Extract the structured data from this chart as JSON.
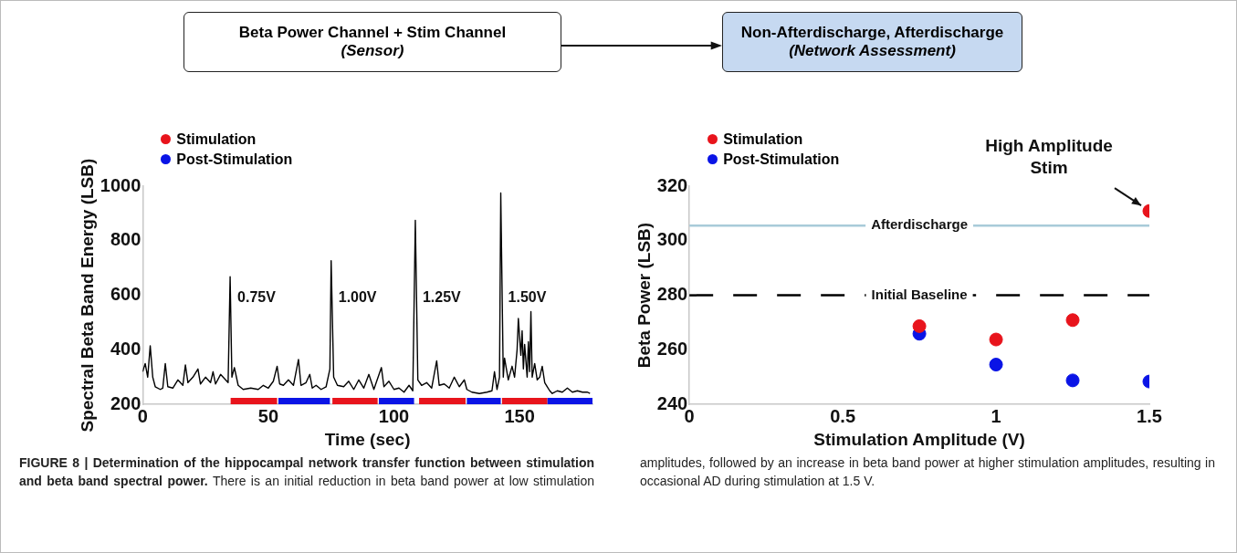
{
  "chart_data": [
    {
      "type": "other",
      "annotations": [
        "Beta Power Channel + Stim Channel",
        "(Sensor)",
        "Non-Afterdischarge, Afterdischarge",
        "(Network Assessment)"
      ]
    },
    {
      "type": "line",
      "xlabel": "Time (sec)",
      "ylabel": "Spectral Beta Band Energy (LSB)",
      "xlim": [
        0,
        179
      ],
      "xticks": [
        0,
        50,
        100,
        150
      ],
      "ylim": [
        200,
        1000
      ],
      "yticks": [
        200,
        400,
        600,
        800,
        1000
      ],
      "grid": false,
      "legend": "top left",
      "marker": "none",
      "annotations": [
        {
          "text": "0.75V",
          "x": 34.8,
          "y": 590
        },
        {
          "text": "1.00V",
          "x": 75,
          "y": 590
        },
        {
          "text": "1.25V",
          "x": 108.5,
          "y": 590
        },
        {
          "text": "1.50V",
          "x": 142.5,
          "y": 590
        }
      ],
      "series": [
        {
          "color": "#000000",
          "x": [
            0,
            1,
            2,
            3,
            4,
            5,
            7,
            8,
            9,
            10,
            12,
            14,
            16,
            17,
            18,
            20,
            22,
            23,
            25,
            27,
            28,
            29,
            31,
            33,
            34,
            34.8,
            35.5,
            36.5,
            38,
            40,
            43,
            46,
            48,
            50,
            52,
            53.5,
            54.5,
            56,
            58,
            60,
            62,
            63,
            65,
            66.5,
            67.5,
            69,
            71,
            73,
            74.5,
            75,
            76,
            77.5,
            80,
            82,
            84,
            86,
            88,
            90,
            92,
            95,
            96,
            98,
            100,
            102,
            104,
            106,
            107.5,
            108.5,
            109.5,
            111,
            113,
            115,
            117,
            118,
            120,
            122,
            124,
            126,
            128,
            129,
            131,
            134,
            137,
            139,
            140,
            141,
            142,
            142.5,
            143.5,
            144,
            145.5,
            147,
            148,
            149,
            149.5,
            150.5,
            151,
            151.5,
            152,
            153,
            153.5,
            154,
            154.5,
            155,
            156,
            157,
            158,
            159,
            160,
            161,
            162,
            163,
            165,
            167,
            169,
            171,
            173,
            175,
            177,
            178
          ],
          "values": [
            320,
            350,
            300,
            415,
            300,
            265,
            255,
            260,
            350,
            265,
            260,
            290,
            270,
            345,
            280,
            300,
            330,
            275,
            300,
            280,
            320,
            275,
            310,
            290,
            280,
            668,
            300,
            335,
            270,
            255,
            260,
            255,
            270,
            260,
            285,
            340,
            275,
            270,
            290,
            270,
            365,
            270,
            280,
            310,
            260,
            270,
            255,
            265,
            330,
            727,
            300,
            270,
            265,
            285,
            255,
            290,
            260,
            310,
            255,
            335,
            265,
            285,
            255,
            260,
            245,
            270,
            250,
            875,
            290,
            270,
            280,
            260,
            360,
            270,
            275,
            260,
            300,
            265,
            290,
            255,
            245,
            240,
            245,
            250,
            320,
            255,
            300,
            975,
            300,
            370,
            290,
            340,
            300,
            400,
            515,
            380,
            470,
            330,
            420,
            300,
            430,
            320,
            540,
            300,
            350,
            290,
            300,
            340,
            280,
            265,
            250,
            240,
            250,
            245,
            260,
            245,
            250,
            245,
            245,
            240
          ]
        },
        {
          "name": "Stimulation",
          "color": "#e8141c",
          "x": [
            35,
            53.5,
            54,
            75.5,
            93.5,
            94,
            110,
            128.5,
            129,
            143,
            161
          ],
          "values": [
            212,
            212,
            null,
            212,
            212,
            null,
            212,
            212,
            null,
            212,
            212
          ]
        },
        {
          "name": "Post-Stimulation",
          "color": "#0a14e6",
          "x": [
            54,
            74.5,
            75,
            94,
            108,
            109,
            129,
            142.5,
            143,
            161,
            179
          ],
          "values": [
            212,
            212,
            null,
            212,
            212,
            null,
            212,
            212,
            null,
            212,
            212
          ]
        }
      ]
    },
    {
      "type": "scatter",
      "xlabel": "Stimulation Amplitude (V)",
      "ylabel": "Beta Power (LSB)",
      "xlim": [
        0,
        1.5
      ],
      "xticks": [
        0,
        0.5,
        1,
        1.5
      ],
      "ylim": [
        240,
        320
      ],
      "yticks": [
        240,
        260,
        280,
        300,
        320
      ],
      "grid": false,
      "legend": "top left",
      "marker": "circle",
      "x": [
        0.75,
        1,
        1.25,
        1.5
      ],
      "annotations": [
        {
          "text": "High Amplitude Stim",
          "x": 1.5,
          "y": 310.9
        }
      ],
      "ref_lines": [
        {
          "axis": "y",
          "value": 305.5,
          "label": "Afterdischarge",
          "color": "#a8cbd9",
          "line_style": "solid"
        },
        {
          "axis": "y",
          "value": 280,
          "label": "Initial Baseline",
          "color": "#000000",
          "line_style": "dashed"
        }
      ],
      "series": [
        {
          "name": "Stimulation",
          "color": "#e8141c",
          "values": [
            268.7,
            263.8,
            270.9,
            310.9
          ]
        },
        {
          "name": "Post-Stimulation",
          "color": "#0a14e6",
          "values": [
            265.9,
            254.6,
            248.8,
            248.4
          ]
        }
      ]
    },
    {
      "type": "other",
      "title": "FIGURE 8 | Determination of the hippocampal network transfer function between stimulation and beta band spectral power.",
      "annotations": [
        "There is an initial reduction in beta band power at low stimulation amplitudes, followed by an increase in beta band power at higher stimulation amplitudes, resulting in occasional AD during stimulation at 1.5 V."
      ]
    }
  ]
}
